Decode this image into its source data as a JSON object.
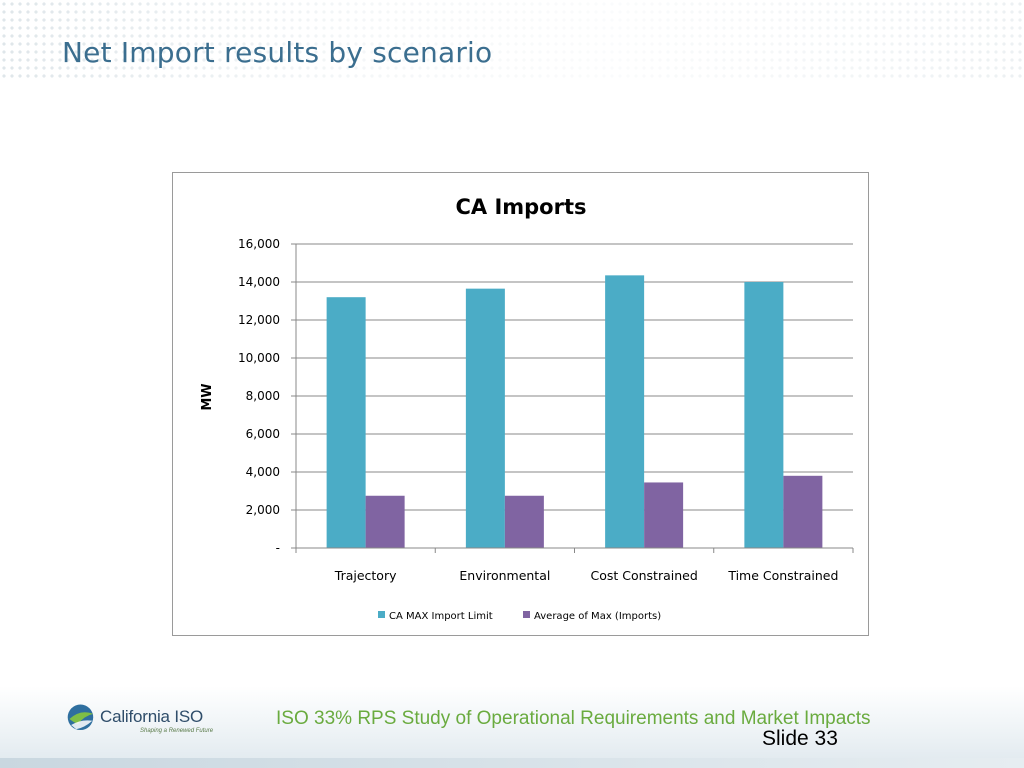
{
  "slide": {
    "title": "Net Import results by scenario",
    "footer_text": "ISO 33% RPS Study of Operational Requirements and Market Impacts",
    "slide_number": "Slide 33",
    "logo_name": "California ISO",
    "logo_tagline": "Shaping a Renewed Future"
  },
  "colors": {
    "title": "#3b6e8f",
    "series_1": "#4bacc6",
    "series_2": "#8064a2",
    "footer_text": "#6aab3f"
  },
  "chart_data": {
    "type": "bar",
    "title": "CA Imports",
    "xlabel": "",
    "ylabel": "MW",
    "categories": [
      "Trajectory",
      "Environmental",
      "Cost Constrained",
      "Time Constrained"
    ],
    "series": [
      {
        "name": "CA MAX Import Limit",
        "values": [
          13200,
          13650,
          14350,
          14000
        ]
      },
      {
        "name": "Average of Max (Imports)",
        "values": [
          2750,
          2750,
          3450,
          3800
        ]
      }
    ],
    "ylim": [
      0,
      16000
    ],
    "yticks": [
      0,
      2000,
      4000,
      6000,
      8000,
      10000,
      12000,
      14000,
      16000
    ],
    "ytick_labels": [
      "-",
      "2,000",
      "4,000",
      "6,000",
      "8,000",
      "10,000",
      "12,000",
      "14,000",
      "16,000"
    ],
    "grid": true,
    "legend": "bottom"
  }
}
